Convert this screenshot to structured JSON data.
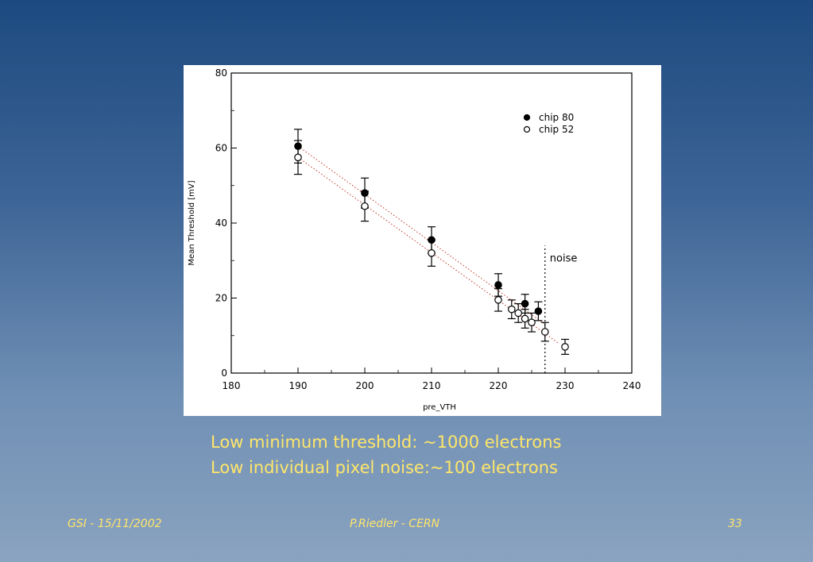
{
  "slide": {
    "caption_line1": "Low minimum threshold: ~1000 electrons",
    "caption_line2": "Low individual pixel noise:~100 electrons",
    "footer_left": "GSI - 15/11/2002",
    "footer_center": "P.Riedler - CERN",
    "footer_right": "33",
    "text_color": "#ffe66a",
    "background_top": "#1c4a80",
    "background_bottom": "#8aa3c0"
  },
  "chart_data": {
    "type": "scatter",
    "title": "",
    "xlabel": "pre_VTH",
    "ylabel": "Mean Threshold [mV]",
    "xlim": [
      180,
      240
    ],
    "ylim": [
      0,
      80
    ],
    "x_ticks": [
      "180",
      "190",
      "200",
      "210",
      "220",
      "230",
      "240"
    ],
    "y_ticks": [
      "0",
      "20",
      "40",
      "60",
      "80"
    ],
    "grid": false,
    "legend_position": "top-right",
    "series": [
      {
        "name": "chip 80",
        "marker": "filled-circle",
        "color": "#000000",
        "points": [
          {
            "x": 190,
            "y": 60.5,
            "err": 4.5
          },
          {
            "x": 200,
            "y": 48,
            "err": 4.0
          },
          {
            "x": 210,
            "y": 35.5,
            "err": 3.5
          },
          {
            "x": 220,
            "y": 23.5,
            "err": 3.0
          },
          {
            "x": 224,
            "y": 18.5,
            "err": 2.5
          },
          {
            "x": 226,
            "y": 16.5,
            "err": 2.5
          }
        ]
      },
      {
        "name": "chip 52",
        "marker": "open-circle",
        "color": "#000000",
        "points": [
          {
            "x": 190,
            "y": 57.5,
            "err": 4.5
          },
          {
            "x": 200,
            "y": 44.5,
            "err": 4.0
          },
          {
            "x": 210,
            "y": 32,
            "err": 3.5
          },
          {
            "x": 220,
            "y": 19.5,
            "err": 3.0
          },
          {
            "x": 222,
            "y": 17,
            "err": 2.5
          },
          {
            "x": 223,
            "y": 16,
            "err": 2.5
          },
          {
            "x": 224,
            "y": 14.5,
            "err": 2.5
          },
          {
            "x": 225,
            "y": 13.5,
            "err": 2.5
          },
          {
            "x": 227,
            "y": 11,
            "err": 2.5
          },
          {
            "x": 230,
            "y": 7,
            "err": 2.0
          }
        ]
      }
    ],
    "fit_lines": [
      {
        "series": "chip 80",
        "from": [
          190,
          60.5
        ],
        "to": [
          227,
          13
        ],
        "style": "dotted",
        "color": "#c0392b"
      },
      {
        "series": "chip 52",
        "from": [
          190,
          57.5
        ],
        "to": [
          229,
          8
        ],
        "style": "dotted",
        "color": "#c0392b"
      }
    ],
    "annotations": [
      {
        "text": "noise",
        "x_line": 227,
        "y_from": 0,
        "y_to": 34,
        "style": "dashed"
      }
    ]
  }
}
